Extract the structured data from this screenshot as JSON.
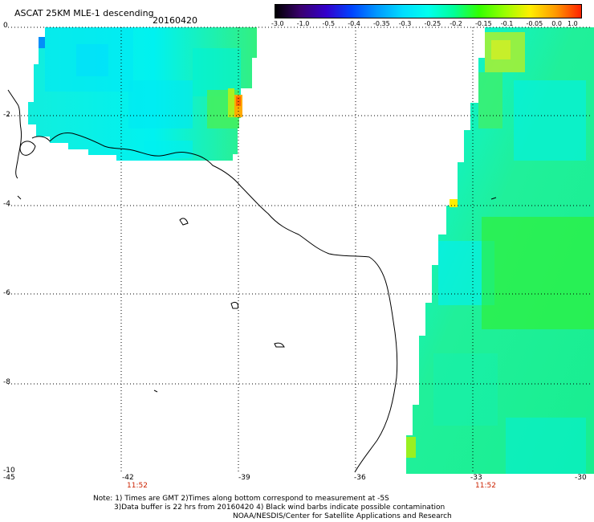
{
  "header": {
    "title": "ASCAT 25KM MLE-1 descending",
    "date": "20160420"
  },
  "colorbar": {
    "ticks": [
      "-3.0",
      "-1.0",
      "-0.5",
      "-0.4",
      "-0.35",
      "-0.3",
      "-0.25",
      "-0.2",
      "-0.15",
      "-0.1",
      "-0.05",
      "0.0",
      "1.0"
    ],
    "colors": [
      "#000000",
      "#3a0070",
      "#3300cc",
      "#0044ff",
      "#0099ff",
      "#00ddff",
      "#00ffee",
      "#00ff99",
      "#33ff00",
      "#99ff00",
      "#ffee00",
      "#ff9900",
      "#ff2200"
    ]
  },
  "axes": {
    "y_ticks": [
      "0",
      "-2",
      "-4",
      "-6",
      "-8",
      "-10"
    ],
    "x_ticks": [
      "-45",
      "-42",
      "-39",
      "-36",
      "-33",
      "-30"
    ],
    "time_labels": [
      "11:52",
      "11:52"
    ]
  },
  "notes": {
    "line1": "Note: 1) Times are GMT 2)Times along bottom correspond to measurement at -5S",
    "line2": "3)Data buffer is 22 hrs from 20160420 4) Black wind barbs indicate possible contamination",
    "line3": "NOAA/NESDIS/Center for Satellite Applications and Research"
  },
  "colors": {
    "swath_cyan": "#00f0e8",
    "swath_green": "#22f07a",
    "swath_mid": "#11eec0",
    "coast": "#000000",
    "grid": "#000000"
  }
}
